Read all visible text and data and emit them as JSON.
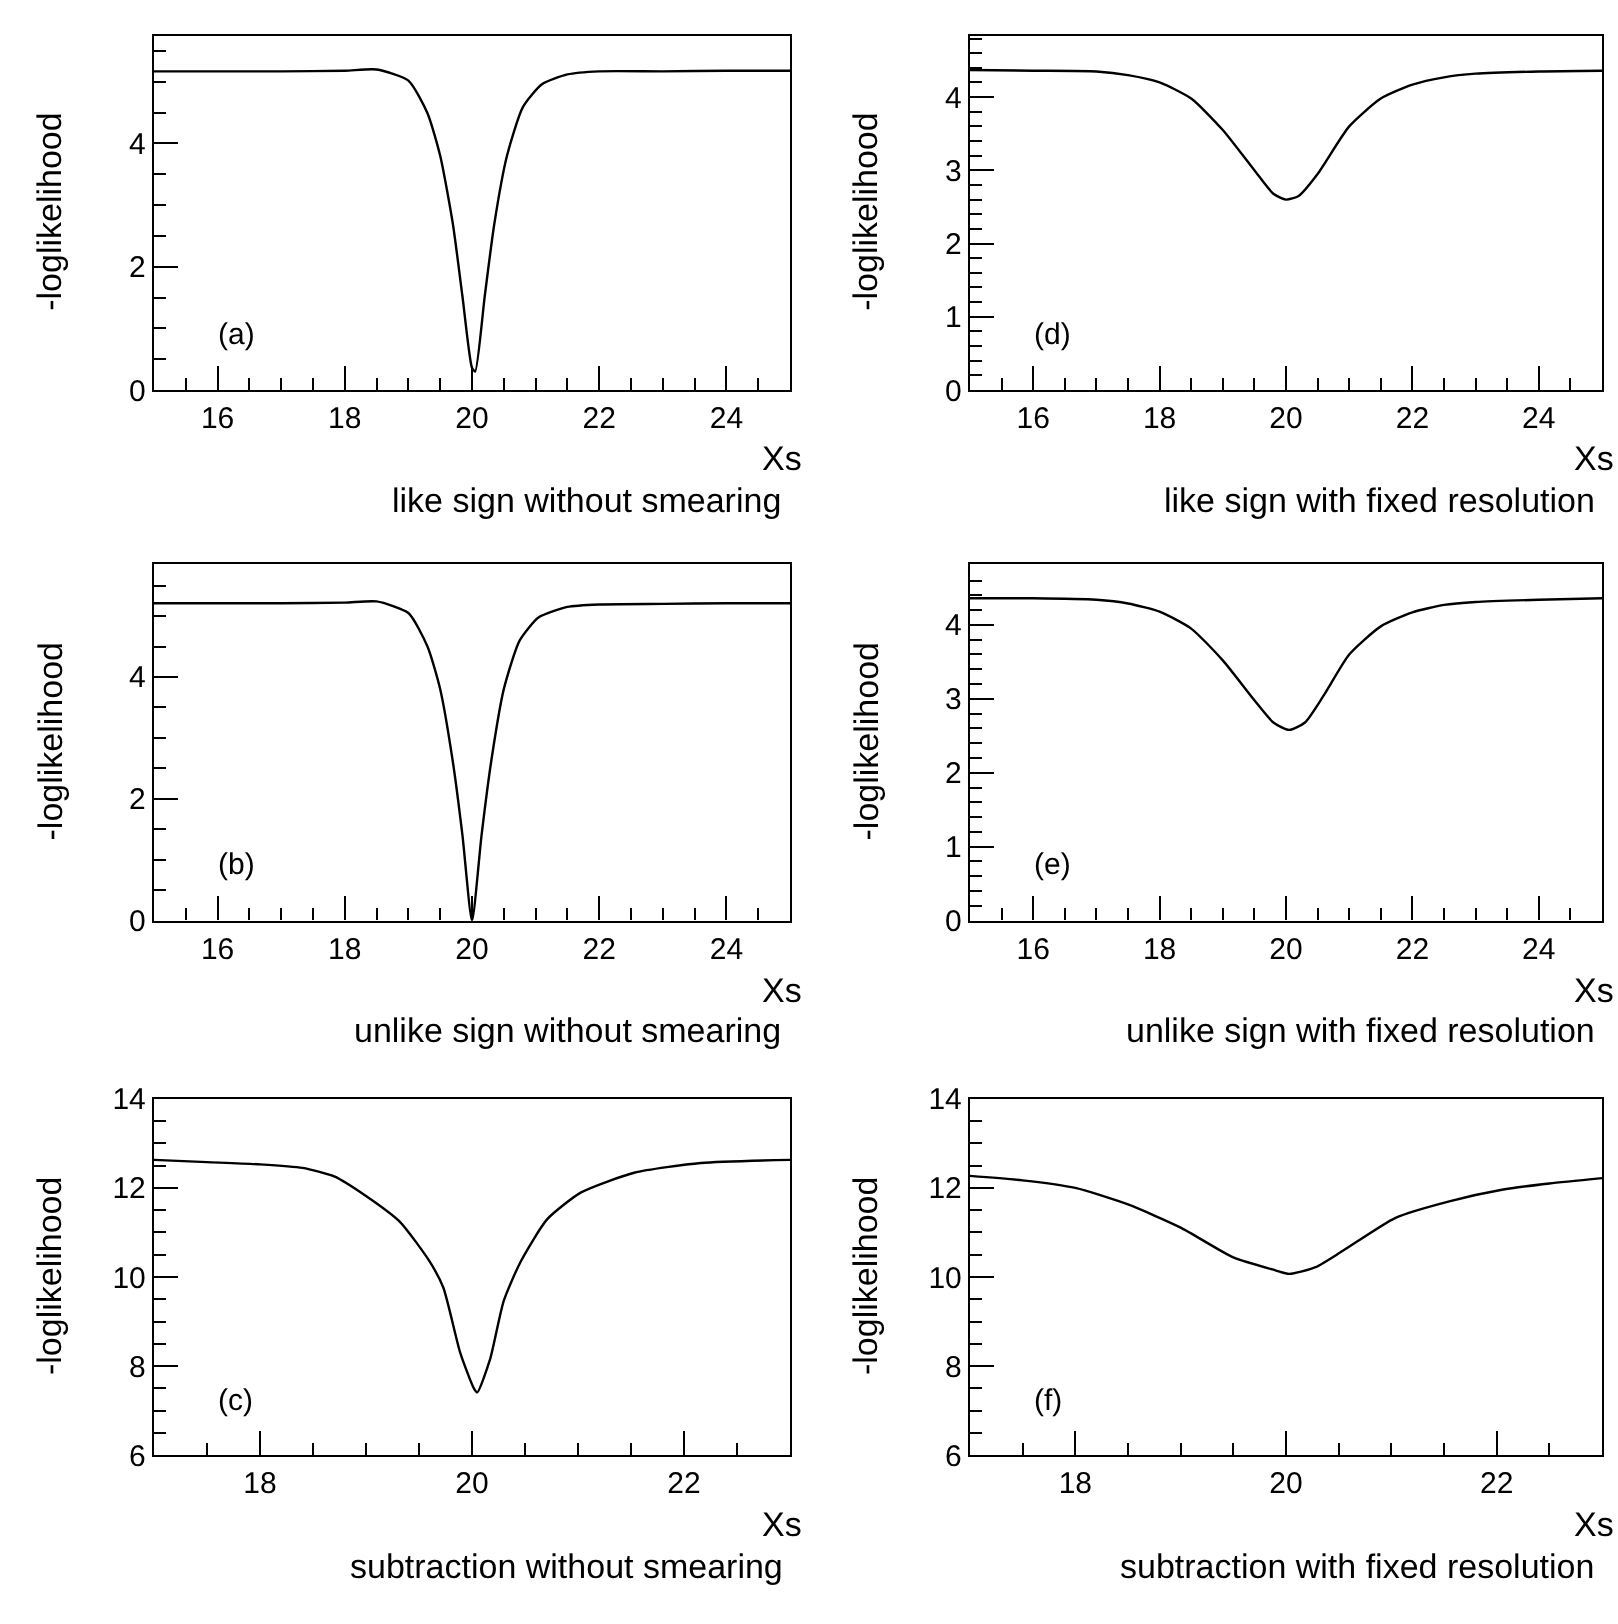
{
  "chart_data": [
    {
      "type": "line",
      "title": "like sign without smearing",
      "xlabel": "Xs",
      "ylabel": "-loglikelihood",
      "annotations": [
        "(a)"
      ],
      "xlim": [
        15,
        25
      ],
      "xticks": [
        16,
        18,
        20,
        22,
        24
      ],
      "ylim": [
        0,
        5.75
      ],
      "yticks": [
        0,
        2,
        4
      ],
      "series": [
        {
          "color": "#000000",
          "x": [
            15,
            16,
            17,
            18,
            18.5,
            19,
            19.3,
            19.5,
            19.7,
            19.85,
            20.0,
            20.05,
            20.2,
            20.35,
            20.55,
            20.8,
            21.1,
            21.5,
            22,
            23,
            24,
            25
          ],
          "values": [
            5.17,
            5.17,
            5.17,
            5.18,
            5.2,
            5.02,
            4.49,
            3.8,
            2.69,
            1.52,
            0.36,
            0.3,
            1.52,
            2.69,
            3.8,
            4.59,
            4.96,
            5.12,
            5.17,
            5.17,
            5.18,
            5.18
          ]
        }
      ]
    },
    {
      "type": "line",
      "title": "like sign with fixed resolution",
      "xlabel": "Xs",
      "ylabel": "-loglikelihood",
      "annotations": [
        "(d)"
      ],
      "xlim": [
        15,
        25
      ],
      "xticks": [
        16,
        18,
        20,
        22,
        24
      ],
      "ylim": [
        0,
        4.84
      ],
      "yticks": [
        0,
        1,
        2,
        3,
        4
      ],
      "series": [
        {
          "color": "#000000",
          "x": [
            15,
            16,
            17,
            17.5,
            18,
            18.5,
            19,
            19.5,
            19.8,
            20,
            20.2,
            20.5,
            21,
            21.5,
            22,
            22.5,
            23,
            24,
            25
          ],
          "values": [
            4.37,
            4.36,
            4.35,
            4.3,
            4.2,
            3.98,
            3.55,
            3.0,
            2.68,
            2.6,
            2.65,
            2.95,
            3.6,
            3.98,
            4.17,
            4.27,
            4.32,
            4.35,
            4.36
          ]
        }
      ]
    },
    {
      "type": "line",
      "title": "unlike sign without smearing",
      "xlabel": "Xs",
      "ylabel": "-loglikelihood",
      "annotations": [
        "(b)"
      ],
      "xlim": [
        15,
        25
      ],
      "xticks": [
        16,
        18,
        20,
        22,
        24
      ],
      "ylim": [
        0,
        5.85
      ],
      "yticks": [
        0,
        2,
        4
      ],
      "series": [
        {
          "color": "#000000",
          "x": [
            15,
            16,
            17,
            18,
            18.5,
            19,
            19.3,
            19.5,
            19.7,
            19.85,
            20.0,
            20.15,
            20.3,
            20.5,
            20.75,
            21.05,
            21.5,
            22,
            23,
            24,
            25
          ],
          "values": [
            5.21,
            5.21,
            5.21,
            5.22,
            5.24,
            5.05,
            4.5,
            3.8,
            2.6,
            1.4,
            0.0,
            1.4,
            2.6,
            3.8,
            4.6,
            4.98,
            5.15,
            5.19,
            5.2,
            5.21,
            5.21
          ]
        }
      ]
    },
    {
      "type": "line",
      "title": "unlike sign with fixed resolution",
      "xlabel": "Xs",
      "ylabel": "-loglikelihood",
      "annotations": [
        "(e)"
      ],
      "xlim": [
        15,
        25
      ],
      "xticks": [
        16,
        18,
        20,
        22,
        24
      ],
      "ylim": [
        0,
        4.82
      ],
      "yticks": [
        0,
        1,
        2,
        3,
        4
      ],
      "series": [
        {
          "color": "#000000",
          "x": [
            15,
            16,
            17,
            17.5,
            18,
            18.5,
            19,
            19.5,
            19.8,
            20.05,
            20.3,
            20.6,
            21,
            21.5,
            22,
            22.5,
            23,
            24,
            25
          ],
          "values": [
            4.36,
            4.36,
            4.34,
            4.29,
            4.18,
            3.95,
            3.52,
            2.98,
            2.68,
            2.58,
            2.68,
            3.05,
            3.6,
            3.98,
            4.17,
            4.27,
            4.31,
            4.34,
            4.36
          ]
        }
      ]
    },
    {
      "type": "line",
      "title": "subtraction without smearing",
      "xlabel": "Xs",
      "ylabel": "-loglikelihood",
      "annotations": [
        "(c)"
      ],
      "xlim": [
        17,
        23
      ],
      "xticks": [
        18,
        20,
        22
      ],
      "ylim": [
        6,
        14
      ],
      "yticks": [
        6,
        8,
        10,
        12,
        14
      ],
      "series": [
        {
          "color": "#000000",
          "x": [
            17,
            17.5,
            18,
            18.4,
            18.7,
            19.0,
            19.32,
            19.6,
            19.73,
            19.89,
            20.02,
            20.05,
            20.17,
            20.3,
            20.46,
            20.71,
            21.03,
            21.53,
            22.16,
            23
          ],
          "values": [
            12.63,
            12.58,
            12.53,
            12.45,
            12.26,
            11.82,
            11.24,
            10.35,
            9.76,
            8.29,
            7.49,
            7.41,
            8.15,
            9.47,
            10.35,
            11.3,
            11.9,
            12.34,
            12.56,
            12.63
          ]
        }
      ]
    },
    {
      "type": "line",
      "title": "subtraction with fixed resolution",
      "xlabel": "Xs",
      "ylabel": "-loglikelihood",
      "annotations": [
        "(f)"
      ],
      "xlim": [
        17,
        23
      ],
      "xticks": [
        18,
        20,
        22
      ],
      "ylim": [
        6,
        14
      ],
      "yticks": [
        6,
        8,
        10,
        12,
        14
      ],
      "series": [
        {
          "color": "#000000",
          "x": [
            17,
            17.5,
            18,
            18.5,
            19,
            19.5,
            19.9,
            20.03,
            20.28,
            20.54,
            21.04,
            21.55,
            22.05,
            22.5,
            23
          ],
          "values": [
            12.27,
            12.17,
            12.0,
            11.63,
            11.11,
            10.44,
            10.15,
            10.07,
            10.22,
            10.59,
            11.33,
            11.7,
            11.96,
            12.1,
            12.22
          ]
        }
      ]
    }
  ]
}
